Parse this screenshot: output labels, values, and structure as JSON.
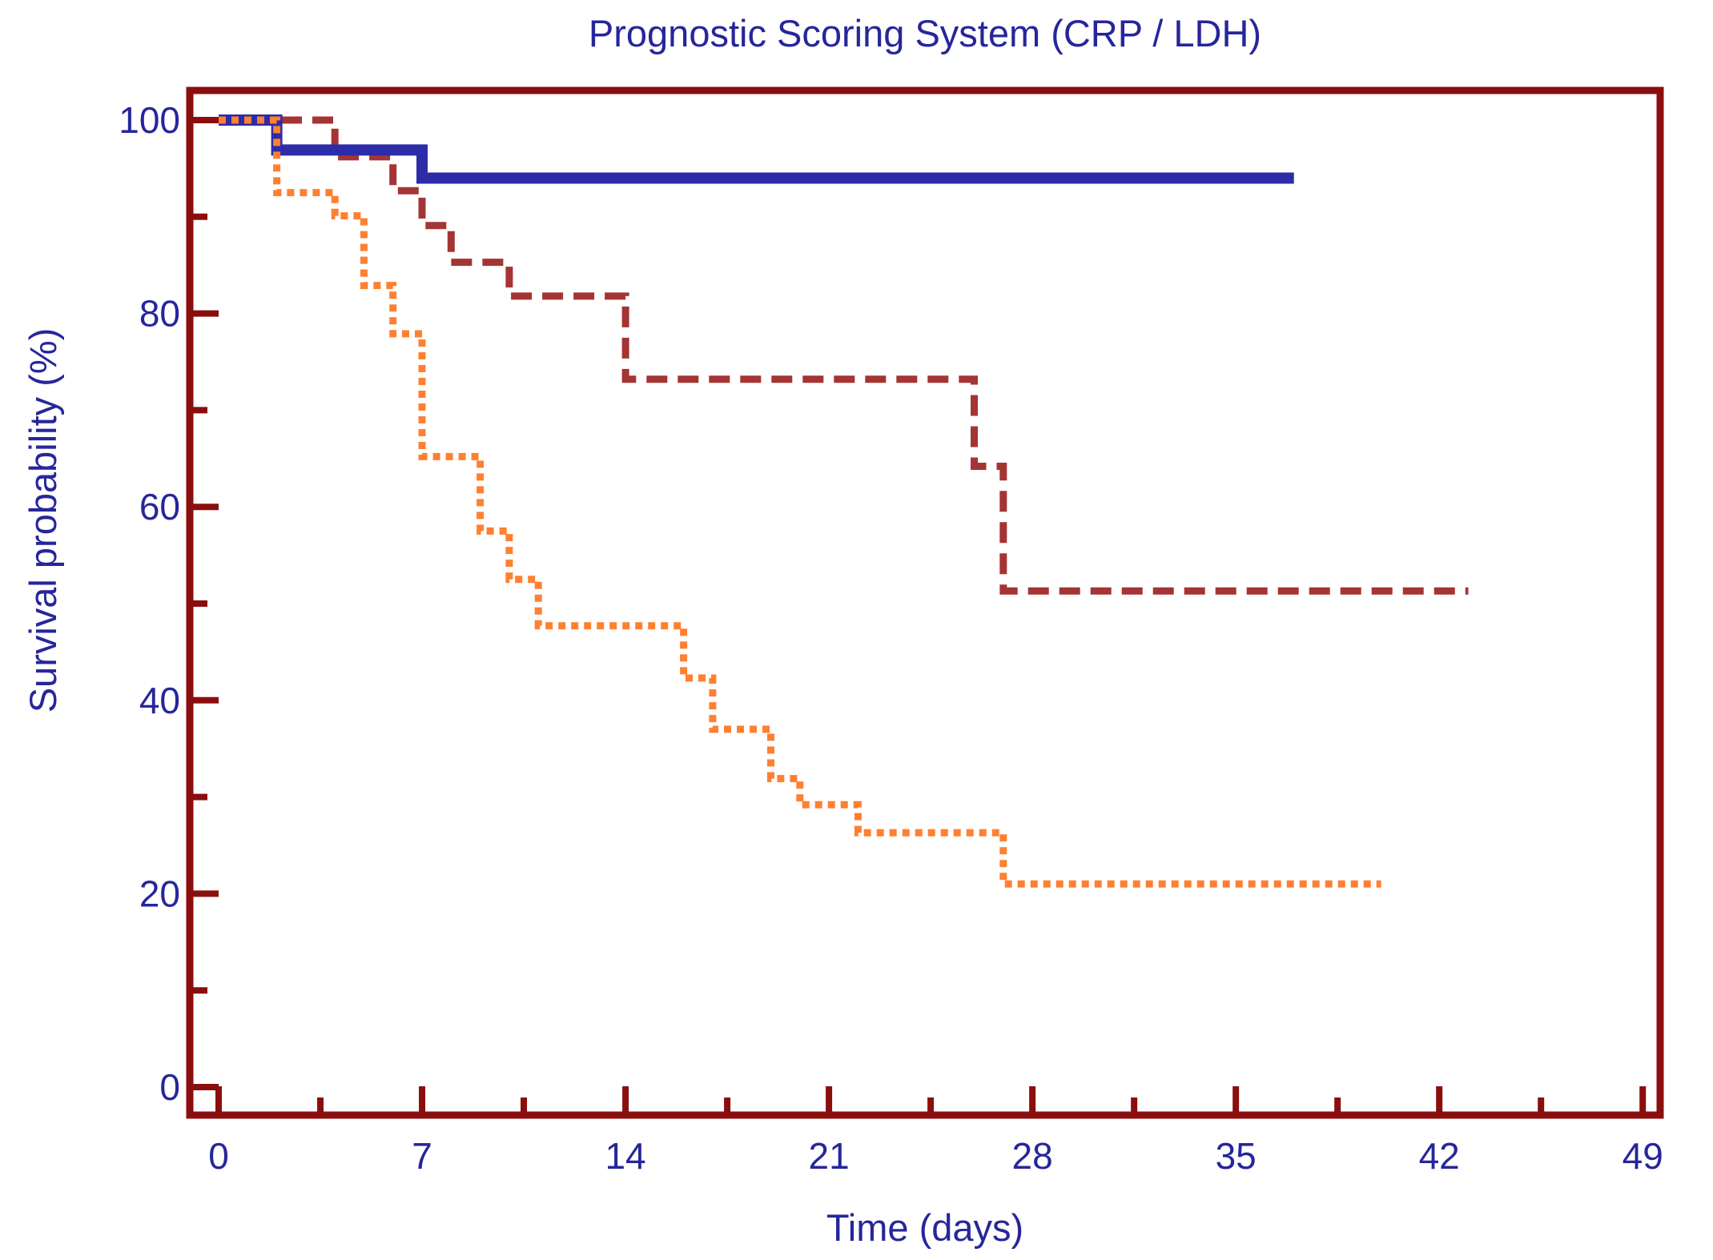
{
  "colors": {
    "frame": "#8B0E0E",
    "tick": "#8B0E0E",
    "text_navy": "#26269B",
    "background": "#FFFFFF",
    "series_solid_blue": "#2C2CA8",
    "series_dashed_dark_red": "#A53434",
    "series_dotted_orange": "#FF8030"
  },
  "chart_data": {
    "type": "line",
    "subtype": "kaplan-meier-step",
    "title": "Prognostic Scoring System (CRP / LDH)",
    "xlabel": "Time (days)",
    "ylabel": "Survival probability (%)",
    "xlim": [
      -1,
      49.6
    ],
    "ylim": [
      -2.9,
      103.1
    ],
    "x_ticks": [
      0,
      7,
      14,
      21,
      28,
      35,
      42,
      49
    ],
    "x_minor_ticks": [
      3.5,
      10.5,
      17.5,
      24.5,
      31.5,
      38.5,
      45.5
    ],
    "y_ticks": [
      0,
      20,
      40,
      60,
      80,
      100
    ],
    "y_minor_ticks": [
      10,
      30,
      50,
      70,
      90
    ],
    "grid": false,
    "legend": "none",
    "series": [
      {
        "name": "solid-blue",
        "style": "solid",
        "color": "#2C2CA8",
        "stroke_width": 14,
        "points": [
          [
            0,
            100
          ],
          [
            2,
            100
          ],
          [
            2,
            96.9
          ],
          [
            7,
            96.9
          ],
          [
            7,
            94.0
          ],
          [
            37,
            94.0
          ]
        ]
      },
      {
        "name": "dashed-dark-red",
        "style": "dashed",
        "color": "#A53434",
        "stroke_width": 9,
        "points": [
          [
            0,
            100
          ],
          [
            4,
            100
          ],
          [
            4,
            96.2
          ],
          [
            6,
            96.2
          ],
          [
            6,
            92.7
          ],
          [
            7,
            92.7
          ],
          [
            7,
            89.1
          ],
          [
            8,
            89.1
          ],
          [
            8,
            85.3
          ],
          [
            10,
            85.3
          ],
          [
            10,
            81.8
          ],
          [
            14,
            81.8
          ],
          [
            14,
            73.2
          ],
          [
            26,
            73.2
          ],
          [
            26,
            64.2
          ],
          [
            27,
            64.2
          ],
          [
            27,
            51.3
          ],
          [
            43,
            51.3
          ]
        ]
      },
      {
        "name": "dotted-orange",
        "style": "dotted",
        "color": "#FF8030",
        "stroke_width": 9,
        "points": [
          [
            0,
            100
          ],
          [
            2,
            100
          ],
          [
            2,
            92.5
          ],
          [
            4,
            92.5
          ],
          [
            4,
            90.1
          ],
          [
            5,
            90.1
          ],
          [
            5,
            82.9
          ],
          [
            6,
            82.9
          ],
          [
            6,
            77.9
          ],
          [
            7,
            77.9
          ],
          [
            7,
            65.2
          ],
          [
            9,
            65.2
          ],
          [
            9,
            57.5
          ],
          [
            10,
            57.5
          ],
          [
            10,
            52.5
          ],
          [
            11,
            52.5
          ],
          [
            11,
            47.7
          ],
          [
            16,
            47.7
          ],
          [
            16,
            42.3
          ],
          [
            17,
            42.3
          ],
          [
            17,
            37.0
          ],
          [
            19,
            37.0
          ],
          [
            19,
            31.9
          ],
          [
            20,
            31.9
          ],
          [
            20,
            29.2
          ],
          [
            22,
            29.2
          ],
          [
            22,
            26.3
          ],
          [
            27,
            26.3
          ],
          [
            27,
            21.0
          ],
          [
            40,
            21.0
          ]
        ]
      }
    ]
  }
}
